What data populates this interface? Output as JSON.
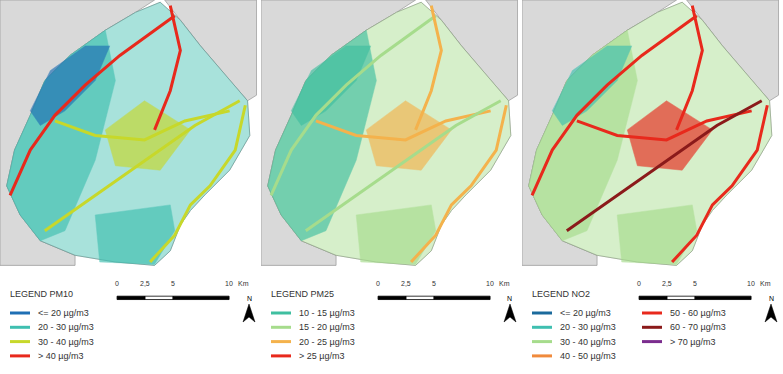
{
  "chart_data": {
    "type": "map",
    "xlim": [
      0,
      23.3
    ],
    "ylim": [
      -9.7,
      23.7
    ],
    "tick_labels": false,
    "scale_bar": {
      "ticks": [
        0,
        {
          "value": 2.5,
          "label": "2,5"
        },
        5,
        10
      ],
      "unit": "Km"
    },
    "north": "N",
    "surroundings": [
      [
        [
          0,
          23.7
        ],
        [
          13.8,
          23.7
        ],
        [
          12.1,
          22.6
        ],
        [
          9.4,
          21.0
        ],
        [
          6.3,
          18.8
        ],
        [
          4.0,
          16.5
        ],
        [
          2.7,
          13.4
        ],
        [
          1.3,
          10.3
        ],
        [
          0.6,
          7.1
        ],
        [
          1.8,
          4.5
        ],
        [
          3.6,
          2.2
        ],
        [
          6.7,
          0.9
        ],
        [
          6.7,
          0
        ],
        [
          0,
          0
        ]
      ],
      [
        [
          14.7,
          23.7
        ],
        [
          22.9,
          23.7
        ],
        [
          22.9,
          15.2
        ],
        [
          22.1,
          14.7
        ],
        [
          20.1,
          17.0
        ],
        [
          17.9,
          19.6
        ],
        [
          16.1,
          21.9
        ]
      ]
    ],
    "outline": [
      [
        14.3,
        23.5
      ],
      [
        16.1,
        21.9
      ],
      [
        17.9,
        19.6
      ],
      [
        20.1,
        17.0
      ],
      [
        22.1,
        14.7
      ],
      [
        22.3,
        11.6
      ],
      [
        20.5,
        8.5
      ],
      [
        18.3,
        6.3
      ],
      [
        17.0,
        4.9
      ],
      [
        16.1,
        3.6
      ],
      [
        15.2,
        1.3
      ],
      [
        13.8,
        0
      ],
      [
        10.3,
        0.3
      ],
      [
        6.7,
        0.9
      ],
      [
        3.6,
        2.2
      ],
      [
        1.8,
        4.5
      ],
      [
        0.6,
        7.1
      ],
      [
        1.3,
        10.3
      ],
      [
        2.7,
        13.4
      ],
      [
        4.0,
        16.5
      ],
      [
        6.3,
        18.8
      ],
      [
        9.4,
        21.0
      ],
      [
        12.1,
        22.6
      ]
    ],
    "zones": [
      [
        [
          0.6,
          7.1
        ],
        [
          1.3,
          10.3
        ],
        [
          2.7,
          13.4
        ],
        [
          4.0,
          16.5
        ],
        [
          6.3,
          18.8
        ],
        [
          9.4,
          21.0
        ],
        [
          10.3,
          16.5
        ],
        [
          8.5,
          9.4
        ],
        [
          5.8,
          3.1
        ],
        [
          3.6,
          2.2
        ],
        [
          1.8,
          4.5
        ]
      ],
      [
        [
          2.7,
          13.8
        ],
        [
          4.5,
          17.4
        ],
        [
          7.6,
          19.6
        ],
        [
          9.8,
          19.6
        ],
        [
          8.5,
          16.5
        ],
        [
          5.8,
          13.8
        ],
        [
          3.6,
          12.5
        ]
      ],
      [
        [
          9.4,
          12.1
        ],
        [
          12.9,
          14.7
        ],
        [
          17.0,
          12.1
        ],
        [
          14.3,
          8.5
        ],
        [
          10.3,
          8.9
        ]
      ],
      [
        [
          8.5,
          4.5
        ],
        [
          15.2,
          5.4
        ],
        [
          15.6,
          3.1
        ],
        [
          13.8,
          0.1
        ],
        [
          8.9,
          0.3
        ]
      ]
    ],
    "roads": [
      [
        [
          0.9,
          6.25
        ],
        [
          2.7,
          10.3
        ],
        [
          4.9,
          13.4
        ],
        [
          7.6,
          16.1
        ],
        [
          10.7,
          18.75
        ],
        [
          13.8,
          21.0
        ],
        [
          15.6,
          22.3
        ]
      ],
      [
        [
          21.9,
          14.3
        ],
        [
          21.0,
          10.3
        ],
        [
          18.75,
          7.1
        ],
        [
          17.0,
          5.4
        ],
        [
          15.6,
          2.7
        ],
        [
          13.4,
          0.3
        ]
      ],
      [
        [
          13.8,
          12.1
        ],
        [
          15.2,
          15.6
        ],
        [
          16.1,
          19.2
        ],
        [
          15.2,
          23.2
        ]
      ],
      [
        [
          4.9,
          12.9
        ],
        [
          8.5,
          11.6
        ],
        [
          12.9,
          11.2
        ],
        [
          16.5,
          12.9
        ],
        [
          20.5,
          13.8
        ]
      ],
      [
        [
          4.0,
          3.1
        ],
        [
          8.5,
          6.25
        ],
        [
          12.9,
          9.4
        ],
        [
          17.4,
          12.5
        ],
        [
          21.4,
          14.7
        ]
      ]
    ],
    "panels": [
      {
        "legend_title": "LEGEND PM10",
        "classes": [
          {
            "label": "<= 20 µg/m3",
            "color": "#1f6fb4"
          },
          {
            "label": "20 - 30 µg/m3",
            "color": "#3fbfb0"
          },
          {
            "label": "30 - 40 µg/m3",
            "color": "#c7d82a"
          },
          {
            "label": "> 40 µg/m3",
            "color": "#e8291c"
          }
        ],
        "city": 1,
        "zones": [
          1,
          0,
          2,
          1
        ],
        "roads": [
          3,
          2,
          3,
          2,
          2
        ]
      },
      {
        "legend_title": "LEGEND PM25",
        "classes": [
          {
            "label": "10 - 15 µg/m3",
            "color": "#3fbfa0"
          },
          {
            "label": "15 - 20 µg/m3",
            "color": "#a6dc8c"
          },
          {
            "label": "20 - 25 µg/m3",
            "color": "#f4b24c"
          },
          {
            "label": "> 25 µg/m3",
            "color": "#e8291c"
          }
        ],
        "city": 1,
        "zones": [
          0,
          0,
          2,
          1
        ],
        "roads": [
          1,
          2,
          2,
          2,
          1
        ]
      },
      {
        "legend_title": "LEGEND NO2",
        "classes": [
          {
            "label": "<= 20 µg/m3",
            "color": "#1b6a9c"
          },
          {
            "label": "20 - 30 µg/m3",
            "color": "#3fbfb0"
          },
          {
            "label": "30 - 40 µg/m3",
            "color": "#a6dc8c"
          },
          {
            "label": "40 - 50 µg/m3",
            "color": "#f08a3c"
          },
          {
            "label": "50 - 60 µg/m3",
            "color": "#e8291c"
          },
          {
            "label": "60 - 70 µg/m3",
            "color": "#8b1a1a"
          },
          {
            "label": "> 70 µg/m3",
            "color": "#7b2d8e"
          }
        ],
        "city": 2,
        "zones": [
          2,
          1,
          4,
          2
        ],
        "roads": [
          4,
          4,
          4,
          4,
          5
        ]
      }
    ]
  }
}
